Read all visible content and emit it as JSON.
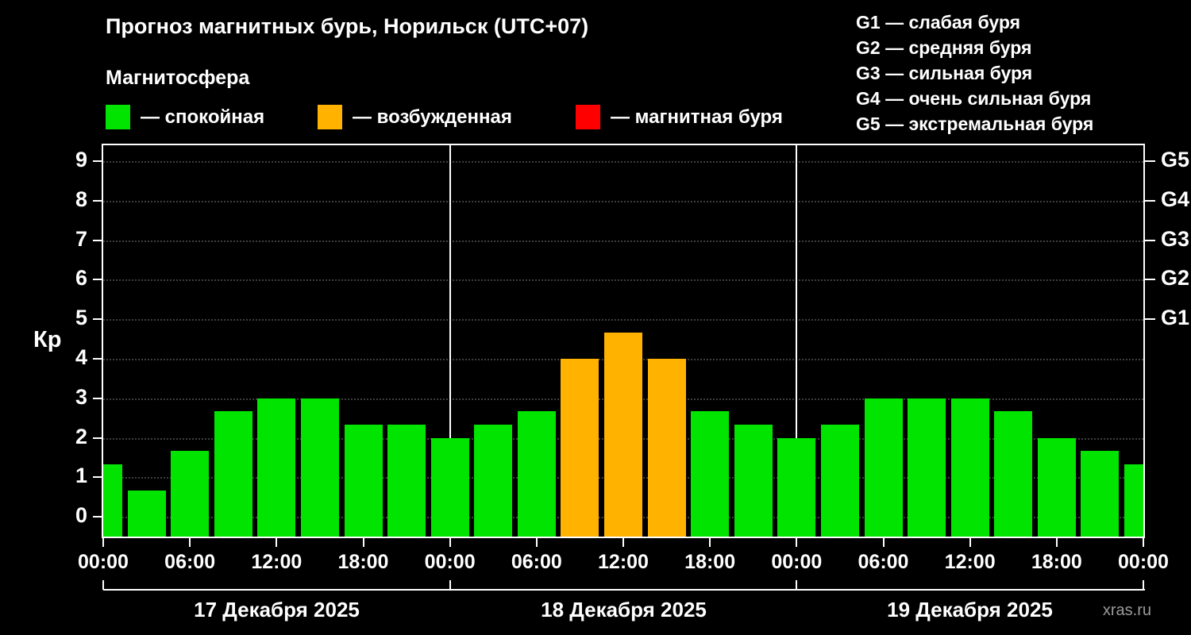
{
  "title": "Прогноз магнитных бурь, Норильск (UTC+07)",
  "subtitle": "Магнитосфера",
  "legend": {
    "items": [
      {
        "id": "quiet",
        "label": "— спокойная",
        "color": "#00e400"
      },
      {
        "id": "excited",
        "label": "— возбужденная",
        "color": "#ffb300"
      },
      {
        "id": "storm",
        "label": "— магнитная буря",
        "color": "#ff0000"
      }
    ]
  },
  "storm_scale": {
    "items": [
      {
        "label": "G1 — слабая буря"
      },
      {
        "label": "G2 — средняя буря"
      },
      {
        "label": "G3 — сильная буря"
      },
      {
        "label": "G4 — очень сильная буря"
      },
      {
        "label": "G5 — экстремальная буря"
      }
    ]
  },
  "watermark": "xras.ru",
  "chart_data": {
    "type": "bar",
    "title": "Прогноз магнитных бурь, Норильск (UTC+07)",
    "ylabel": "Кр",
    "ylim": [
      -0.5,
      9.4
    ],
    "yticks": [
      0,
      1,
      2,
      3,
      4,
      5,
      6,
      7,
      8,
      9
    ],
    "grid": "dotted-horizontal",
    "legend_position": "top",
    "right_axis_ticks": [
      {
        "value": 5,
        "label": "G1"
      },
      {
        "value": 6,
        "label": "G2"
      },
      {
        "value": 7,
        "label": "G3"
      },
      {
        "value": 8,
        "label": "G4"
      },
      {
        "value": 9,
        "label": "G5"
      }
    ],
    "x_range_hours": [
      0,
      72
    ],
    "x_ticks": [
      {
        "hour": 0,
        "label": "00:00"
      },
      {
        "hour": 6,
        "label": "06:00"
      },
      {
        "hour": 12,
        "label": "12:00"
      },
      {
        "hour": 18,
        "label": "18:00"
      },
      {
        "hour": 24,
        "label": "00:00"
      },
      {
        "hour": 30,
        "label": "06:00"
      },
      {
        "hour": 36,
        "label": "12:00"
      },
      {
        "hour": 42,
        "label": "18:00"
      },
      {
        "hour": 48,
        "label": "00:00"
      },
      {
        "hour": 54,
        "label": "06:00"
      },
      {
        "hour": 60,
        "label": "12:00"
      },
      {
        "hour": 66,
        "label": "18:00"
      },
      {
        "hour": 72,
        "label": "00:00"
      }
    ],
    "day_boundaries_hours": [
      24,
      48
    ],
    "days": [
      {
        "label": "17 Декабря 2025"
      },
      {
        "label": "18 Декабря 2025"
      },
      {
        "label": "19 Декабря 2025"
      }
    ],
    "color_thresholds": {
      "excited_min_kp": 4,
      "storm_min_kp": 5
    },
    "bars": [
      {
        "hour": 0,
        "value": 1.33
      },
      {
        "hour": 3,
        "value": 0.67
      },
      {
        "hour": 6,
        "value": 1.67
      },
      {
        "hour": 9,
        "value": 2.67
      },
      {
        "hour": 12,
        "value": 3.0
      },
      {
        "hour": 15,
        "value": 3.0
      },
      {
        "hour": 18,
        "value": 2.33
      },
      {
        "hour": 21,
        "value": 2.33
      },
      {
        "hour": 24,
        "value": 2.0
      },
      {
        "hour": 27,
        "value": 2.33
      },
      {
        "hour": 30,
        "value": 2.67
      },
      {
        "hour": 33,
        "value": 4.0
      },
      {
        "hour": 36,
        "value": 4.67
      },
      {
        "hour": 39,
        "value": 4.0
      },
      {
        "hour": 42,
        "value": 2.67
      },
      {
        "hour": 45,
        "value": 2.33
      },
      {
        "hour": 48,
        "value": 2.0
      },
      {
        "hour": 51,
        "value": 2.33
      },
      {
        "hour": 54,
        "value": 3.0
      },
      {
        "hour": 57,
        "value": 3.0
      },
      {
        "hour": 60,
        "value": 3.0
      },
      {
        "hour": 63,
        "value": 2.67
      },
      {
        "hour": 66,
        "value": 2.0
      },
      {
        "hour": 69,
        "value": 1.67
      },
      {
        "hour": 72,
        "value": 1.33
      }
    ]
  }
}
